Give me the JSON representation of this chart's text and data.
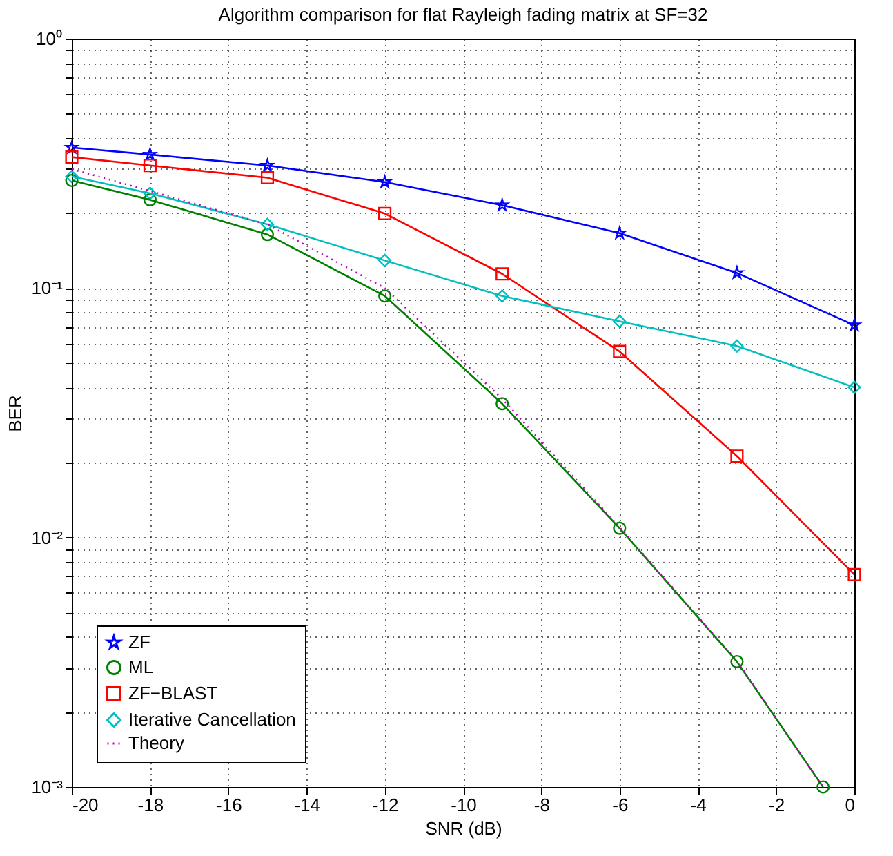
{
  "chart_data": {
    "type": "line",
    "title": "Algorithm comparison for flat Rayleigh fading matrix at SF=32",
    "xlabel": "SNR (dB)",
    "ylabel": "BER",
    "log": "y",
    "xlim": [
      -20,
      0
    ],
    "xticks": [
      -20,
      -18,
      -16,
      -14,
      -12,
      -10,
      -8,
      -6,
      -4,
      -2,
      0
    ],
    "ylim": [
      0.001,
      1
    ],
    "yticks": [
      {
        "value": 0.001,
        "label": "10⁻³"
      },
      {
        "value": 0.002,
        "label": null
      },
      {
        "value": 0.003,
        "label": null
      },
      {
        "value": 0.004,
        "label": null
      },
      {
        "value": 0.005,
        "label": null
      },
      {
        "value": 0.006,
        "label": null
      },
      {
        "value": 0.007,
        "label": null
      },
      {
        "value": 0.008,
        "label": null
      },
      {
        "value": 0.009,
        "label": null
      },
      {
        "value": 0.01,
        "label": "10⁻²"
      },
      {
        "value": 0.02,
        "label": null
      },
      {
        "value": 0.03,
        "label": null
      },
      {
        "value": 0.04,
        "label": null
      },
      {
        "value": 0.05,
        "label": null
      },
      {
        "value": 0.06,
        "label": null
      },
      {
        "value": 0.07,
        "label": null
      },
      {
        "value": 0.08,
        "label": null
      },
      {
        "value": 0.09,
        "label": null
      },
      {
        "value": 0.1,
        "label": "10⁻¹"
      },
      {
        "value": 0.2,
        "label": null
      },
      {
        "value": 0.3,
        "label": null
      },
      {
        "value": 0.4,
        "label": null
      },
      {
        "value": 0.5,
        "label": null
      },
      {
        "value": 0.6,
        "label": null
      },
      {
        "value": 0.7,
        "label": null
      },
      {
        "value": 0.8,
        "label": null
      },
      {
        "value": 0.9,
        "label": null
      },
      {
        "value": 1,
        "label": "10⁰"
      }
    ],
    "grid": true,
    "legend": "bottom left",
    "series": [
      {
        "name": "ZF",
        "color": "#0000ff",
        "marker": "star",
        "line_style": "solid",
        "x": [
          -20,
          -18,
          -15,
          -12,
          -9,
          -6,
          -3,
          0
        ],
        "values": [
          0.366,
          0.343,
          0.31,
          0.266,
          0.215,
          0.166,
          0.115,
          0.071
        ]
      },
      {
        "name": "ML",
        "color": "#008000",
        "marker": "circle",
        "line_style": "solid",
        "x": [
          -20,
          -18,
          -15,
          -12,
          -9,
          -6,
          -3,
          -0.8
        ],
        "values": [
          0.27,
          0.226,
          0.164,
          0.093,
          0.0344,
          0.0109,
          0.00318,
          0.001
        ]
      },
      {
        "name": "ZF−BLAST",
        "color": "#ff0000",
        "marker": "square",
        "line_style": "solid",
        "x": [
          -20,
          -18,
          -15,
          -12,
          -9,
          -6,
          -3,
          0
        ],
        "values": [
          0.335,
          0.31,
          0.277,
          0.199,
          0.114,
          0.0557,
          0.0212,
          0.0071
        ]
      },
      {
        "name": "Iterative Cancellation",
        "color": "#00bfbf",
        "marker": "diamond",
        "line_style": "solid",
        "x": [
          -20,
          -18,
          -15,
          -12,
          -9,
          -6,
          -3,
          0
        ],
        "values": [
          0.28,
          0.24,
          0.18,
          0.129,
          0.093,
          0.0736,
          0.0586,
          0.04
        ]
      },
      {
        "name": "Theory",
        "color": "#bf00bf",
        "marker": "none",
        "line_style": "dotted",
        "x": [
          -20,
          -18,
          -15,
          -12,
          -9,
          -6,
          -3,
          -0.8
        ],
        "values": [
          0.3,
          0.245,
          0.18,
          0.1,
          0.036,
          0.011,
          0.0032,
          0.001
        ]
      }
    ]
  }
}
